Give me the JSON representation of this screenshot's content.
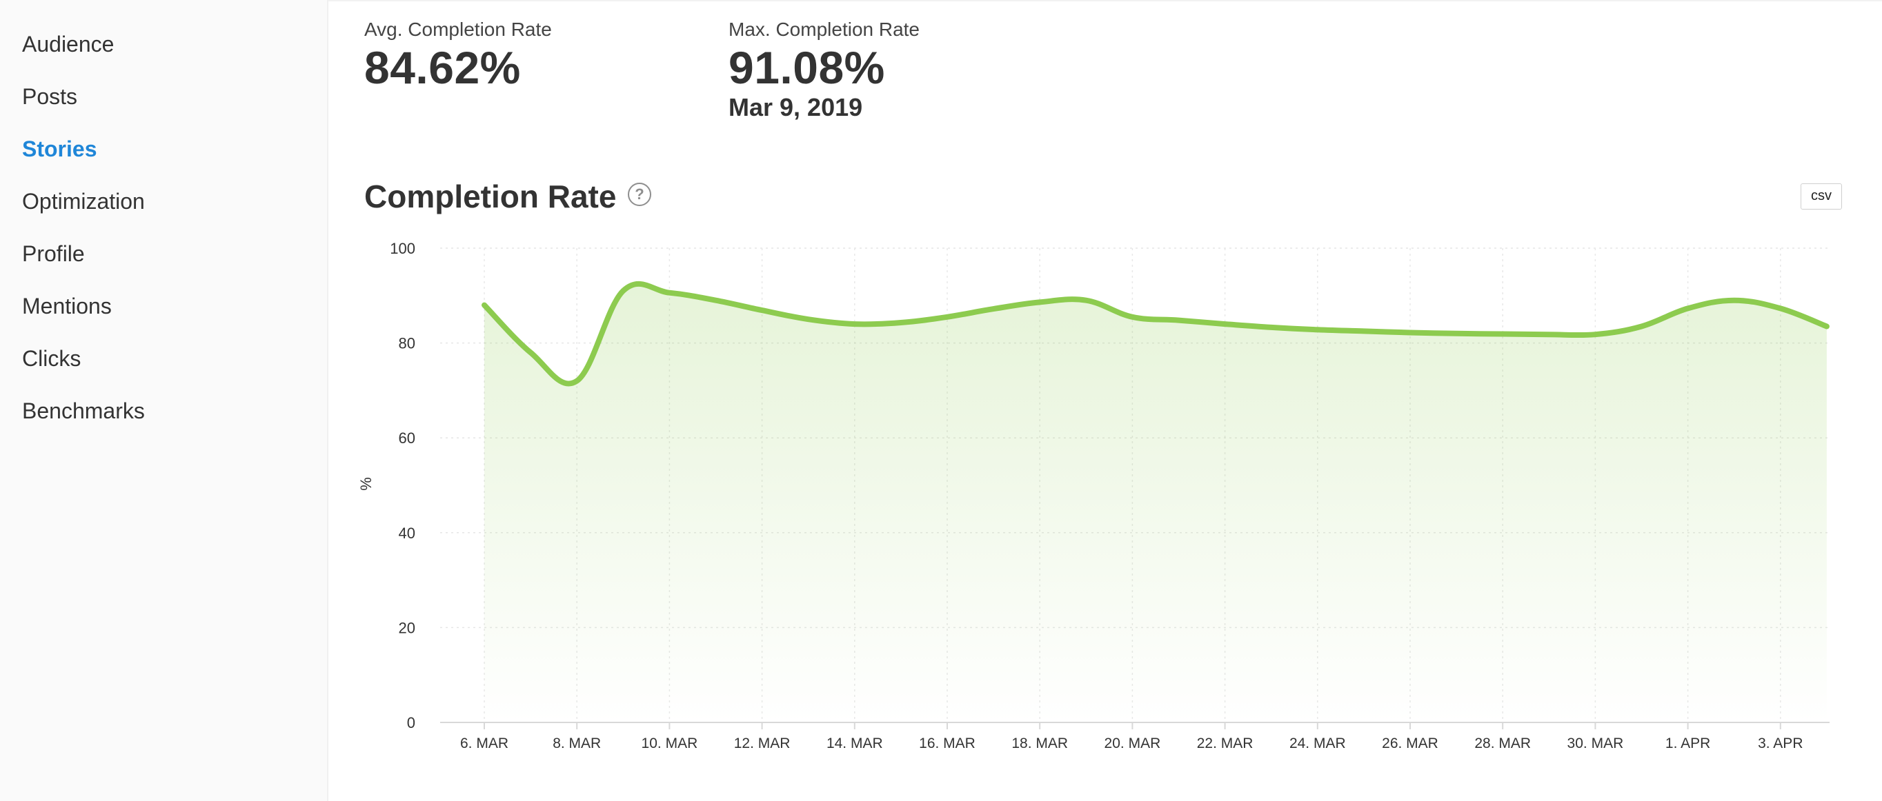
{
  "sidebar": {
    "items": [
      {
        "label": "Audience",
        "active": false
      },
      {
        "label": "Posts",
        "active": false
      },
      {
        "label": "Stories",
        "active": true
      },
      {
        "label": "Optimization",
        "active": false
      },
      {
        "label": "Profile",
        "active": false
      },
      {
        "label": "Mentions",
        "active": false
      },
      {
        "label": "Clicks",
        "active": false
      },
      {
        "label": "Benchmarks",
        "active": false
      }
    ]
  },
  "kpis": {
    "avg": {
      "label": "Avg. Completion Rate",
      "value": "84.62%"
    },
    "max": {
      "label": "Max. Completion Rate",
      "value": "91.08%",
      "date": "Mar 9, 2019"
    }
  },
  "section": {
    "title": "Completion Rate",
    "help_icon": "question-circle-icon",
    "csv_label": "csv"
  },
  "colors": {
    "accent": "#1f86d8",
    "line": "#8dcb4f"
  },
  "chart_data": {
    "type": "area",
    "title": "Completion Rate",
    "ylabel": "%",
    "xlabel": "",
    "ylim": [
      0,
      100
    ],
    "yticks": [
      0,
      20,
      40,
      60,
      80,
      100
    ],
    "xticks": [
      "6. MAR",
      "8. MAR",
      "10. MAR",
      "12. MAR",
      "14. MAR",
      "16. MAR",
      "18. MAR",
      "20. MAR",
      "22. MAR",
      "24. MAR",
      "26. MAR",
      "28. MAR",
      "30. MAR",
      "1. APR",
      "3. APR"
    ],
    "grid": true,
    "legend": "none",
    "series": [
      {
        "x": [
          "6. MAR",
          "7. MAR",
          "8. MAR",
          "9. MAR",
          "10. MAR",
          "11. MAR",
          "12. MAR",
          "13. MAR",
          "14. MAR",
          "15. MAR",
          "16. MAR",
          "17. MAR",
          "18. MAR",
          "19. MAR",
          "20. MAR",
          "21. MAR",
          "22. MAR",
          "23. MAR",
          "24. MAR",
          "25. MAR",
          "26. MAR",
          "27. MAR",
          "28. MAR",
          "29. MAR",
          "30. MAR",
          "31. MAR",
          "1. APR",
          "2. APR",
          "3. APR",
          "4. APR"
        ],
        "values": [
          88,
          78,
          72,
          91,
          90.6,
          89,
          86.9,
          85,
          84,
          84.3,
          85.5,
          87.2,
          88.6,
          89,
          85.5,
          84.8,
          84,
          83.3,
          82.8,
          82.5,
          82.2,
          82,
          81.9,
          81.8,
          81.8,
          83.5,
          87.3,
          89,
          87.3,
          83.5
        ]
      }
    ]
  }
}
